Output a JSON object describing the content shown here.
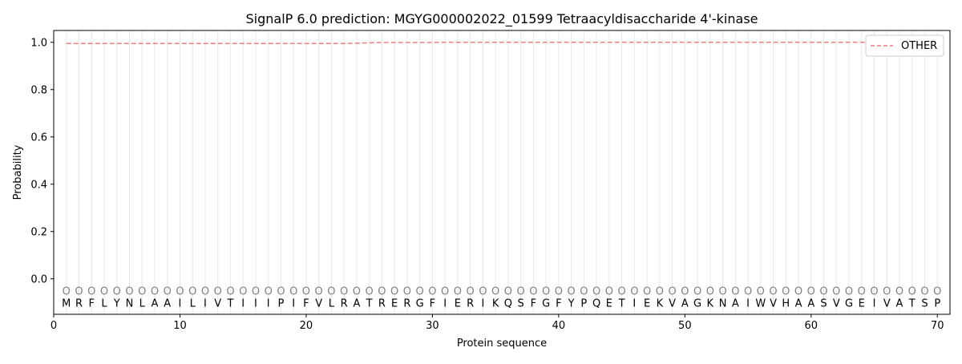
{
  "chart_data": {
    "type": "line",
    "title": "SignalP 6.0 prediction: MGYG000002022_01599 Tetraacyldisaccharide 4'-kinase",
    "xlabel": "Protein sequence",
    "ylabel": "Probability",
    "xlim": [
      0,
      71
    ],
    "ylim": [
      -0.15,
      1.05
    ],
    "xticks": [
      0,
      10,
      20,
      30,
      40,
      50,
      60,
      70
    ],
    "yticks": [
      0.0,
      0.2,
      0.4,
      0.6,
      0.8,
      1.0
    ],
    "ytick_labels": [
      "0.0",
      "0.2",
      "0.4",
      "0.6",
      "0.8",
      "1.0"
    ],
    "grid": "vertical lines at each residue",
    "legend_placement": "top-right",
    "sequence": [
      "M",
      "R",
      "F",
      "L",
      "Y",
      "N",
      "L",
      "A",
      "A",
      "I",
      "L",
      "I",
      "V",
      "T",
      "I",
      "I",
      "I",
      "P",
      "I",
      "F",
      "V",
      "L",
      "R",
      "A",
      "T",
      "R",
      "E",
      "R",
      "G",
      "F",
      "I",
      "E",
      "R",
      "I",
      "K",
      "Q",
      "S",
      "F",
      "G",
      "F",
      "Y",
      "P",
      "Q",
      "E",
      "T",
      "I",
      "E",
      "K",
      "V",
      "A",
      "G",
      "K",
      "N",
      "A",
      "I",
      "W",
      "V",
      "H",
      "A",
      "A",
      "S",
      "V",
      "G",
      "E",
      "I",
      "V",
      "A",
      "T",
      "S",
      "P"
    ],
    "labels_char": "O",
    "series": [
      {
        "name": "OTHER",
        "color": "#f08080",
        "style": "dashed",
        "values": [
          0.995,
          0.995,
          0.995,
          0.995,
          0.995,
          0.995,
          0.995,
          0.995,
          0.995,
          0.995,
          0.995,
          0.995,
          0.995,
          0.995,
          0.995,
          0.995,
          0.995,
          0.995,
          0.995,
          0.995,
          0.995,
          0.995,
          0.995,
          0.996,
          0.998,
          0.999,
          0.999,
          0.999,
          0.999,
          0.999,
          1.0,
          1.0,
          1.0,
          1.0,
          1.0,
          1.0,
          1.0,
          1.0,
          1.0,
          1.0,
          1.0,
          1.0,
          1.0,
          1.0,
          1.0,
          1.0,
          1.0,
          1.0,
          1.0,
          1.0,
          1.0,
          1.0,
          1.0,
          1.0,
          1.0,
          1.0,
          1.0,
          1.0,
          1.0,
          1.0,
          1.0,
          1.0,
          1.0,
          1.0,
          1.0,
          1.0,
          1.0,
          1.0,
          1.0,
          1.0
        ]
      }
    ]
  }
}
